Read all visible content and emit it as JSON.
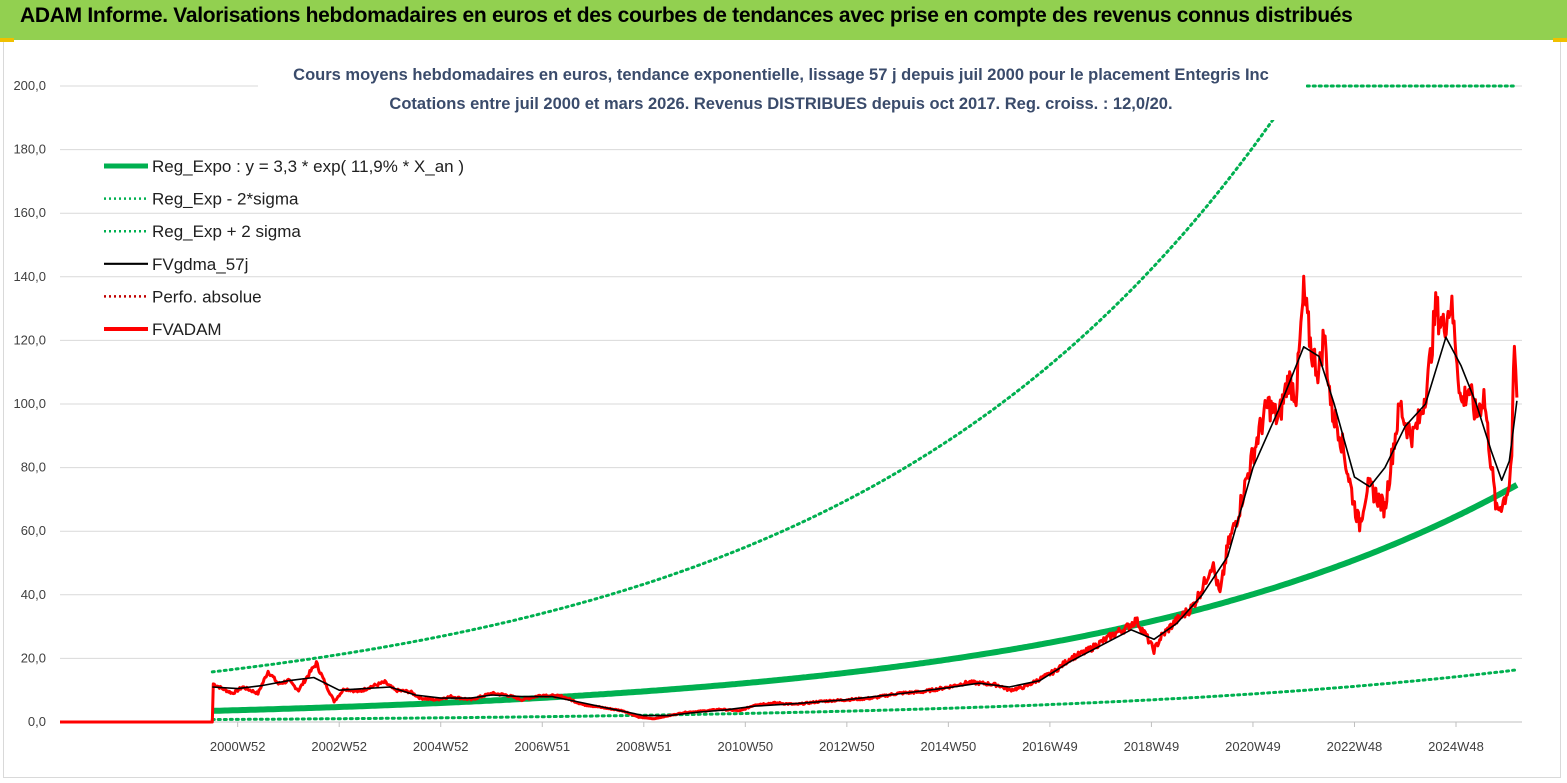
{
  "header": {
    "title": "ADAM Informe. Valorisations hebdomadaires en euros et des courbes de tendances avec prise en compte des revenus connus distribués",
    "banner_color": "#92d050"
  },
  "chart_data": {
    "type": "line",
    "title_line1": "Cours moyens hebdomadaires en euros, tendance exponentielle, lissage 57 j depuis juil 2000 pour le placement Entegris Inc",
    "title_line2": "Cotations entre juil 2000 et mars 2026. Revenus DISTRIBUES depuis oct 2017. Reg. croiss. : 12,0/20.",
    "ylim": [
      0,
      200
    ],
    "y_ticks": [
      "0,0",
      "20,0",
      "40,0",
      "60,0",
      "80,0",
      "100,0",
      "120,0",
      "140,0",
      "160,0",
      "180,0",
      "200,0"
    ],
    "x_ticks": [
      {
        "label": "2000W52",
        "x": 2001.0
      },
      {
        "label": "2002W52",
        "x": 2003.0
      },
      {
        "label": "2004W52",
        "x": 2005.0
      },
      {
        "label": "2006W51",
        "x": 2007.0
      },
      {
        "label": "2008W51",
        "x": 2009.0
      },
      {
        "label": "2010W50",
        "x": 2011.0
      },
      {
        "label": "2012W50",
        "x": 2013.0
      },
      {
        "label": "2014W50",
        "x": 2015.0
      },
      {
        "label": "2016W49",
        "x": 2017.0
      },
      {
        "label": "2018W49",
        "x": 2019.0
      },
      {
        "label": "2020W49",
        "x": 2021.0
      },
      {
        "label": "2022W48",
        "x": 2023.0
      },
      {
        "label": "2024W48",
        "x": 2025.0
      }
    ],
    "xlim": [
      1997.5,
      2026.3
    ],
    "grid": "horizontal",
    "legend_position": "top-left",
    "regression": {
      "a": 3.3,
      "b": 0.119,
      "x0": 2000.5,
      "x_end": 2026.2,
      "sigma_factor_upper": 4.5,
      "sigma_factor_lower": 0.22,
      "cap": 200
    },
    "series": [
      {
        "name": "Reg_Expo : y = 3,3 * exp( 11,9% *  X_an )",
        "color": "#00b050",
        "style": "thick"
      },
      {
        "name": "Reg_Exp - 2*sigma",
        "color": "#00b050",
        "style": "dotted"
      },
      {
        "name": "Reg_Exp + 2 sigma",
        "color": "#00b050",
        "style": "dotted"
      },
      {
        "name": "FVgdma_57j",
        "color": "#000000",
        "style": "solid"
      },
      {
        "name": "Perfo. absolue",
        "color": "#c00000",
        "style": "dotted"
      },
      {
        "name": "FVADAM",
        "color": "#ff0000",
        "style": "thick"
      }
    ],
    "fvadam_points": [
      [
        1997.5,
        0.0
      ],
      [
        2000.5,
        0.0
      ],
      [
        2000.52,
        12.0
      ],
      [
        2000.7,
        10.5
      ],
      [
        2000.9,
        9.0
      ],
      [
        2001.1,
        11.0
      ],
      [
        2001.4,
        9.0
      ],
      [
        2001.6,
        16.0
      ],
      [
        2001.8,
        12.0
      ],
      [
        2002.0,
        13.0
      ],
      [
        2002.2,
        10.0
      ],
      [
        2002.4,
        15.0
      ],
      [
        2002.55,
        18.5
      ],
      [
        2002.7,
        13.0
      ],
      [
        2002.9,
        6.5
      ],
      [
        2003.1,
        10.5
      ],
      [
        2003.4,
        9.5
      ],
      [
        2003.6,
        11.0
      ],
      [
        2003.9,
        12.5
      ],
      [
        2004.1,
        10.0
      ],
      [
        2004.4,
        9.5
      ],
      [
        2004.6,
        7.5
      ],
      [
        2004.9,
        7.0
      ],
      [
        2005.2,
        8.0
      ],
      [
        2005.6,
        7.0
      ],
      [
        2006.0,
        9.0
      ],
      [
        2006.3,
        8.5
      ],
      [
        2006.6,
        7.0
      ],
      [
        2007.0,
        8.5
      ],
      [
        2007.4,
        8.0
      ],
      [
        2007.8,
        5.5
      ],
      [
        2008.2,
        4.5
      ],
      [
        2008.6,
        3.5
      ],
      [
        2008.9,
        1.5
      ],
      [
        2009.2,
        1.0
      ],
      [
        2009.5,
        2.0
      ],
      [
        2009.8,
        3.0
      ],
      [
        2010.2,
        3.5
      ],
      [
        2010.5,
        4.0
      ],
      [
        2010.9,
        3.5
      ],
      [
        2011.2,
        5.5
      ],
      [
        2011.6,
        6.0
      ],
      [
        2012.0,
        5.5
      ],
      [
        2012.5,
        6.5
      ],
      [
        2013.0,
        7.0
      ],
      [
        2013.5,
        7.5
      ],
      [
        2014.0,
        9.0
      ],
      [
        2014.5,
        9.5
      ],
      [
        2015.0,
        11.0
      ],
      [
        2015.4,
        12.5
      ],
      [
        2015.8,
        12.0
      ],
      [
        2016.0,
        11.5
      ],
      [
        2016.2,
        10.0
      ],
      [
        2016.5,
        11.0
      ],
      [
        2016.8,
        13.5
      ],
      [
        2017.1,
        16.0
      ],
      [
        2017.4,
        20.0
      ],
      [
        2017.7,
        22.0
      ],
      [
        2018.0,
        25.0
      ],
      [
        2018.3,
        28.0
      ],
      [
        2018.5,
        29.5
      ],
      [
        2018.7,
        32.0
      ],
      [
        2018.9,
        27.0
      ],
      [
        2019.05,
        22.5
      ],
      [
        2019.2,
        27.0
      ],
      [
        2019.5,
        32.0
      ],
      [
        2019.8,
        36.0
      ],
      [
        2020.0,
        42.0
      ],
      [
        2020.2,
        50.0
      ],
      [
        2020.35,
        40.0
      ],
      [
        2020.5,
        55.0
      ],
      [
        2020.7,
        65.0
      ],
      [
        2020.9,
        78.0
      ],
      [
        2021.1,
        90.0
      ],
      [
        2021.3,
        100.0
      ],
      [
        2021.5,
        95.0
      ],
      [
        2021.7,
        108.0
      ],
      [
        2021.85,
        103.0
      ],
      [
        2022.0,
        135.0
      ],
      [
        2022.15,
        117.0
      ],
      [
        2022.3,
        110.0
      ],
      [
        2022.4,
        122.0
      ],
      [
        2022.55,
        98.0
      ],
      [
        2022.7,
        92.0
      ],
      [
        2022.85,
        80.0
      ],
      [
        2023.0,
        68.0
      ],
      [
        2023.1,
        62.0
      ],
      [
        2023.25,
        74.0
      ],
      [
        2023.4,
        72.0
      ],
      [
        2023.6,
        67.0
      ],
      [
        2023.75,
        85.0
      ],
      [
        2023.9,
        100.0
      ],
      [
        2024.0,
        94.0
      ],
      [
        2024.15,
        90.0
      ],
      [
        2024.3,
        96.0
      ],
      [
        2024.45,
        108.0
      ],
      [
        2024.6,
        130.0
      ],
      [
        2024.75,
        124.0
      ],
      [
        2024.9,
        132.0
      ],
      [
        2025.0,
        118.0
      ],
      [
        2025.1,
        100.0
      ],
      [
        2025.25,
        105.0
      ],
      [
        2025.4,
        96.0
      ],
      [
        2025.55,
        103.0
      ],
      [
        2025.7,
        80.0
      ],
      [
        2025.8,
        66.0
      ],
      [
        2025.95,
        70.0
      ],
      [
        2026.05,
        75.0
      ],
      [
        2026.1,
        85.0
      ],
      [
        2026.15,
        118.0
      ],
      [
        2026.2,
        102.0
      ]
    ],
    "fvgdma_points": [
      [
        2000.5,
        11.0
      ],
      [
        2001.0,
        10.5
      ],
      [
        2001.5,
        11.5
      ],
      [
        2002.0,
        13.0
      ],
      [
        2002.5,
        14.0
      ],
      [
        2003.0,
        10.0
      ],
      [
        2003.5,
        10.5
      ],
      [
        2004.0,
        11.0
      ],
      [
        2004.5,
        8.5
      ],
      [
        2005.0,
        7.5
      ],
      [
        2005.6,
        7.5
      ],
      [
        2006.0,
        8.5
      ],
      [
        2006.6,
        8.0
      ],
      [
        2007.2,
        8.0
      ],
      [
        2007.8,
        6.0
      ],
      [
        2008.4,
        4.0
      ],
      [
        2009.0,
        2.0
      ],
      [
        2009.5,
        2.0
      ],
      [
        2010.0,
        3.0
      ],
      [
        2010.6,
        3.8
      ],
      [
        2011.2,
        5.0
      ],
      [
        2012.0,
        5.8
      ],
      [
        2013.0,
        7.0
      ],
      [
        2014.0,
        8.8
      ],
      [
        2015.0,
        10.8
      ],
      [
        2015.6,
        12.2
      ],
      [
        2016.2,
        11.0
      ],
      [
        2016.8,
        13.0
      ],
      [
        2017.4,
        19.0
      ],
      [
        2018.0,
        24.0
      ],
      [
        2018.6,
        29.0
      ],
      [
        2019.05,
        26.0
      ],
      [
        2019.5,
        31.0
      ],
      [
        2020.0,
        40.0
      ],
      [
        2020.5,
        52.0
      ],
      [
        2021.0,
        80.0
      ],
      [
        2021.5,
        98.0
      ],
      [
        2022.0,
        118.0
      ],
      [
        2022.3,
        115.0
      ],
      [
        2022.6,
        100.0
      ],
      [
        2023.0,
        77.0
      ],
      [
        2023.3,
        74.0
      ],
      [
        2023.6,
        80.0
      ],
      [
        2024.0,
        93.0
      ],
      [
        2024.4,
        100.0
      ],
      [
        2024.8,
        121.0
      ],
      [
        2025.1,
        112.0
      ],
      [
        2025.4,
        100.0
      ],
      [
        2025.7,
        85.0
      ],
      [
        2025.9,
        76.0
      ],
      [
        2026.05,
        82.0
      ],
      [
        2026.2,
        101.0
      ]
    ]
  }
}
